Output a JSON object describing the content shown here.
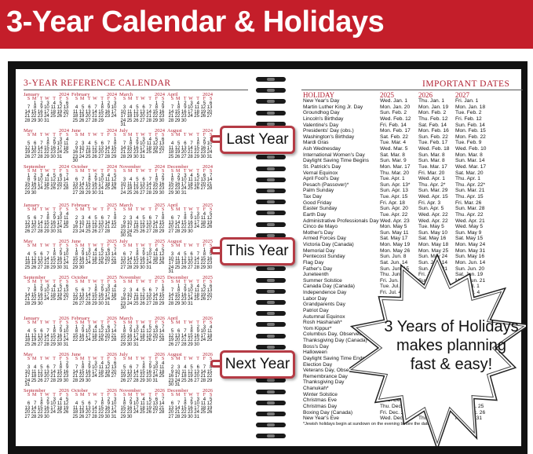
{
  "banner": {
    "title": "3-Year Calendar & Holidays",
    "color": "#c41e2a"
  },
  "calendar": {
    "title": "3-YEAR REFERENCE CALENDAR",
    "weekdays": [
      "S",
      "M",
      "T",
      "W",
      "T",
      "F",
      "S"
    ],
    "months": [
      "January",
      "February",
      "March",
      "April",
      "May",
      "June",
      "July",
      "August",
      "September",
      "October",
      "November",
      "December"
    ],
    "years": [
      2024,
      2025,
      2026
    ]
  },
  "callouts": {
    "last": "Last Year",
    "this": "This Year",
    "next": "Next Year"
  },
  "holidays": {
    "title": "IMPORTANT DATES",
    "headers": [
      "HOLIDAY",
      "2025",
      "2026",
      "2027"
    ],
    "rows": [
      [
        "New Year's Day",
        "Wed. Jan. 1",
        "Thu. Jan. 1",
        "Fri. Jan. 1"
      ],
      [
        "Martin Luther King Jr. Day",
        "Mon. Jan. 20",
        "Mon. Jan. 19",
        "Mon. Jan. 18"
      ],
      [
        "Groundhog Day",
        "Sun. Feb. 2",
        "Mon. Feb. 2",
        "Tue. Feb. 2"
      ],
      [
        "Lincoln's Birthday",
        "Wed. Feb. 12",
        "Thu. Feb. 12",
        "Fri. Feb. 12"
      ],
      [
        "Valentine's Day",
        "Fri. Feb. 14",
        "Sat. Feb. 14",
        "Sun. Feb. 14"
      ],
      [
        "Presidents' Day (obs.)",
        "Mon. Feb. 17",
        "Mon. Feb. 16",
        "Mon. Feb. 15"
      ],
      [
        "Washington's Birthday",
        "Sat. Feb. 22",
        "Sun. Feb. 22",
        "Mon. Feb. 22"
      ],
      [
        "Mardi Gras",
        "Tue. Mar. 4",
        "Tue. Feb. 17",
        "Tue. Feb. 9"
      ],
      [
        "Ash Wednesday",
        "Wed. Mar. 5",
        "Wed. Feb. 18",
        "Wed. Feb. 10"
      ],
      [
        "International Women's Day",
        "Sat. Mar. 8",
        "Sun. Mar. 8",
        "Mon. Mar. 8"
      ],
      [
        "Daylight Saving Time Begins",
        "Sun. Mar. 9",
        "Sun. Mar. 8",
        "Sun. Mar. 14"
      ],
      [
        "St. Patrick's Day",
        "Mon. Mar. 17",
        "Tue. Mar. 17",
        "Wed. Mar. 17"
      ],
      [
        "Vernal Equinox",
        "Thu. Mar. 20",
        "Fri. Mar. 20",
        "Sat. Mar. 20"
      ],
      [
        "April Fool's Day",
        "Tue. Apr. 1",
        "Wed. Apr. 1",
        "Thu. Apr. 1"
      ],
      [
        "Pesach (Passover)*",
        "Sun. Apr. 13*",
        "Thu. Apr. 2*",
        "Thu. Apr. 22*"
      ],
      [
        "Palm Sunday",
        "Sun. Apr. 13",
        "Sun. Mar. 29",
        "Sun. Mar. 21"
      ],
      [
        "Tax Day",
        "Tue. Apr. 15",
        "Wed. Apr. 15",
        "Thu. Apr. 15"
      ],
      [
        "Good Friday",
        "Fri. Apr. 18",
        "Fri. Apr. 3",
        "Fri. Mar. 26"
      ],
      [
        "Easter Sunday",
        "Sun. Apr. 20",
        "Sun. Apr. 5",
        "Sun. Mar. 28"
      ],
      [
        "Earth Day",
        "Tue. Apr. 22",
        "Wed. Apr. 22",
        "Thu. Apr. 22"
      ],
      [
        "Administrative Professionals Day",
        "Wed. Apr. 23",
        "Wed. Apr. 22",
        "Wed. Apr. 21"
      ],
      [
        "Cinco de Mayo",
        "Mon. May 5",
        "Tue. May 5",
        "Wed. May 5"
      ],
      [
        "Mother's Day",
        "Sun. May 11",
        "Sun. May 10",
        "Sun. May 9"
      ],
      [
        "Armed Forces Day",
        "Sat. May 17",
        "Sat. May 16",
        "Sat. May 15"
      ],
      [
        "Victoria Day (Canada)",
        "Mon. May 19",
        "Mon. May 18",
        "Mon. May 24"
      ],
      [
        "Memorial Day",
        "Mon. May 26",
        "Mon. May 25",
        "Mon. May 31"
      ],
      [
        "Pentecost Sunday",
        "Sun. Jun. 8",
        "Sun. May 24",
        "Sun. May 16"
      ],
      [
        "Flag Day",
        "Sat. Jun. 14",
        "Sun. Jun. 14",
        "Mon. Jun. 14"
      ],
      [
        "Father's Day",
        "Sun. Jun. 15",
        "Sun. Jun. 21",
        "Sun. Jun. 20"
      ],
      [
        "Juneteenth",
        "Thu. Jun. 19",
        "Fri. Jun. 19",
        "Sat. Jun. 19"
      ],
      [
        "Summer Solstice",
        "Fri. Jun. 20",
        "Sun. Jun. 21",
        "Mon. Jun. 21"
      ],
      [
        "Canada Day (Canada)",
        "Tue. Jul. 1",
        "Wed. Jul. 1",
        "Thu. Jul. 1"
      ],
      [
        "Independence Day",
        "Fri. Jul. 4",
        "Sat. Jul. 4",
        "Sun. Jul. 4"
      ],
      [
        "Labor Day",
        "Mon. Sep. 1",
        "Mon. Sep. 7",
        "Mon. Sep. 6"
      ],
      [
        "Grandparents Day",
        "Sun. Sep. 7",
        "Sun. Sep. 13",
        "Sun. Sep. 12"
      ],
      [
        "Patriot Day",
        "",
        "",
        "Sat. Sep. 11"
      ],
      [
        "Autumnal Equinox",
        "",
        "",
        ""
      ],
      [
        "Rosh Hashanah*",
        "",
        "",
        ""
      ],
      [
        "Yom Kippur*",
        "",
        "",
        ""
      ],
      [
        "Columbus Day, Observed",
        "",
        "",
        ""
      ],
      [
        "Thanksgiving Day (Canada)",
        "",
        "",
        ""
      ],
      [
        "Boss's Day",
        "",
        "",
        ""
      ],
      [
        "Halloween",
        "",
        "",
        ""
      ],
      [
        "Daylight Saving Time Ends",
        "",
        "",
        ""
      ],
      [
        "Election Day",
        "",
        "",
        ""
      ],
      [
        "Veterans Day, Observed",
        "",
        "",
        ""
      ],
      [
        "Remembrance Day",
        "",
        "",
        ""
      ],
      [
        "Thanksgiving Day",
        "",
        "",
        ""
      ],
      [
        "Chanukah*",
        "",
        "",
        ""
      ],
      [
        "Winter Solstice",
        "",
        "",
        ""
      ],
      [
        "Christmas Eve",
        "Wed. Dec. 24",
        "",
        ""
      ],
      [
        "Christmas Day",
        "Thu. Dec. 25",
        "",
        "Sat. Dec. 25"
      ],
      [
        "Boxing Day (Canada)",
        "Fri. Dec. 26",
        "",
        "Sun. Dec. 26"
      ],
      [
        "New Year's Eve",
        "Wed. Dec. 31",
        "Thu. Dec. 31",
        "Fri. Dec. 31"
      ]
    ],
    "footnote": "*Jewish holidays begin at sundown on the evening before the date listed."
  },
  "starburst": {
    "line1": "3 Years of Holidays",
    "line2": "makes planning",
    "line3": "fast & easy!"
  }
}
